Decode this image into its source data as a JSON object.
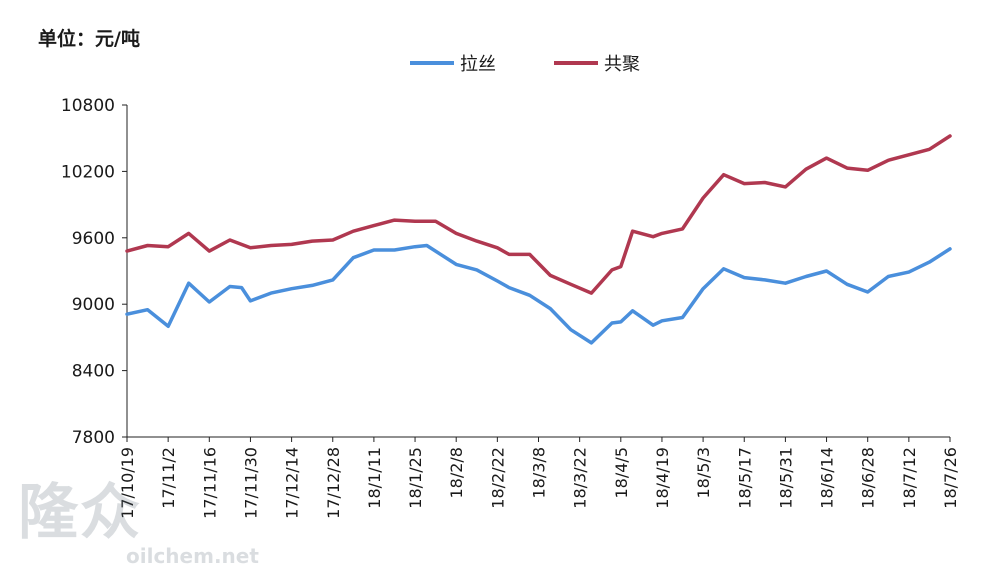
{
  "unit_label": "单位：元/吨",
  "watermark": {
    "logo_text": "隆众",
    "url": "oilchem.net"
  },
  "chart_data": {
    "type": "line",
    "ylim": [
      7800,
      10800
    ],
    "yticks": [
      7800,
      8400,
      9000,
      9600,
      10200,
      10800
    ],
    "xlim": [
      "2017-10-19",
      "2018-07-26"
    ],
    "xtick_labels": [
      "17/10/19",
      "17/11/2",
      "17/11/16",
      "17/11/30",
      "17/12/14",
      "17/12/28",
      "18/1/11",
      "18/1/25",
      "18/2/8",
      "18/2/22",
      "18/3/8",
      "18/3/22",
      "18/4/5",
      "18/4/19",
      "18/5/3",
      "18/5/17",
      "18/5/31",
      "18/6/14",
      "18/6/28",
      "18/7/12",
      "18/7/26"
    ],
    "legend": {
      "position": "top-center"
    },
    "grid": false,
    "series": [
      {
        "name": "拉丝",
        "color": "#4a8fdc",
        "points": [
          [
            "2017-10-19",
            8910
          ],
          [
            "2017-10-26",
            8950
          ],
          [
            "2017-11-02",
            8800
          ],
          [
            "2017-11-09",
            9190
          ],
          [
            "2017-11-16",
            9020
          ],
          [
            "2017-11-23",
            9160
          ],
          [
            "2017-11-27",
            9150
          ],
          [
            "2017-11-30",
            9030
          ],
          [
            "2017-12-07",
            9100
          ],
          [
            "2017-12-14",
            9140
          ],
          [
            "2017-12-21",
            9170
          ],
          [
            "2017-12-28",
            9220
          ],
          [
            "2018-01-04",
            9420
          ],
          [
            "2018-01-11",
            9490
          ],
          [
            "2018-01-18",
            9490
          ],
          [
            "2018-01-25",
            9520
          ],
          [
            "2018-01-29",
            9530
          ],
          [
            "2018-02-08",
            9360
          ],
          [
            "2018-02-15",
            9310
          ],
          [
            "2018-02-22",
            9210
          ],
          [
            "2018-02-26",
            9150
          ],
          [
            "2018-03-05",
            9080
          ],
          [
            "2018-03-12",
            8960
          ],
          [
            "2018-03-19",
            8770
          ],
          [
            "2018-03-26",
            8650
          ],
          [
            "2018-04-02",
            8830
          ],
          [
            "2018-04-05",
            8840
          ],
          [
            "2018-04-09",
            8940
          ],
          [
            "2018-04-16",
            8810
          ],
          [
            "2018-04-19",
            8850
          ],
          [
            "2018-04-26",
            8880
          ],
          [
            "2018-05-03",
            9140
          ],
          [
            "2018-05-10",
            9320
          ],
          [
            "2018-05-17",
            9240
          ],
          [
            "2018-05-24",
            9220
          ],
          [
            "2018-05-31",
            9190
          ],
          [
            "2018-06-07",
            9250
          ],
          [
            "2018-06-14",
            9300
          ],
          [
            "2018-06-21",
            9180
          ],
          [
            "2018-06-28",
            9110
          ],
          [
            "2018-07-05",
            9250
          ],
          [
            "2018-07-12",
            9290
          ],
          [
            "2018-07-19",
            9380
          ],
          [
            "2018-07-26",
            9500
          ]
        ]
      },
      {
        "name": "共聚",
        "color": "#b03850",
        "points": [
          [
            "2017-10-19",
            9480
          ],
          [
            "2017-10-26",
            9530
          ],
          [
            "2017-11-02",
            9520
          ],
          [
            "2017-11-09",
            9640
          ],
          [
            "2017-11-16",
            9480
          ],
          [
            "2017-11-23",
            9580
          ],
          [
            "2017-11-30",
            9510
          ],
          [
            "2017-12-07",
            9530
          ],
          [
            "2017-12-14",
            9540
          ],
          [
            "2017-12-21",
            9570
          ],
          [
            "2017-12-28",
            9580
          ],
          [
            "2018-01-04",
            9660
          ],
          [
            "2018-01-11",
            9710
          ],
          [
            "2018-01-18",
            9760
          ],
          [
            "2018-01-25",
            9750
          ],
          [
            "2018-02-01",
            9750
          ],
          [
            "2018-02-08",
            9640
          ],
          [
            "2018-02-15",
            9570
          ],
          [
            "2018-02-22",
            9510
          ],
          [
            "2018-02-26",
            9450
          ],
          [
            "2018-03-05",
            9450
          ],
          [
            "2018-03-12",
            9260
          ],
          [
            "2018-03-19",
            9180
          ],
          [
            "2018-03-26",
            9100
          ],
          [
            "2018-04-02",
            9310
          ],
          [
            "2018-04-05",
            9340
          ],
          [
            "2018-04-09",
            9660
          ],
          [
            "2018-04-16",
            9610
          ],
          [
            "2018-04-19",
            9640
          ],
          [
            "2018-04-26",
            9680
          ],
          [
            "2018-05-03",
            9960
          ],
          [
            "2018-05-10",
            10170
          ],
          [
            "2018-05-17",
            10090
          ],
          [
            "2018-05-24",
            10100
          ],
          [
            "2018-05-31",
            10060
          ],
          [
            "2018-06-07",
            10220
          ],
          [
            "2018-06-14",
            10320
          ],
          [
            "2018-06-21",
            10230
          ],
          [
            "2018-06-28",
            10210
          ],
          [
            "2018-07-05",
            10300
          ],
          [
            "2018-07-12",
            10350
          ],
          [
            "2018-07-19",
            10400
          ],
          [
            "2018-07-26",
            10520
          ]
        ]
      }
    ]
  }
}
